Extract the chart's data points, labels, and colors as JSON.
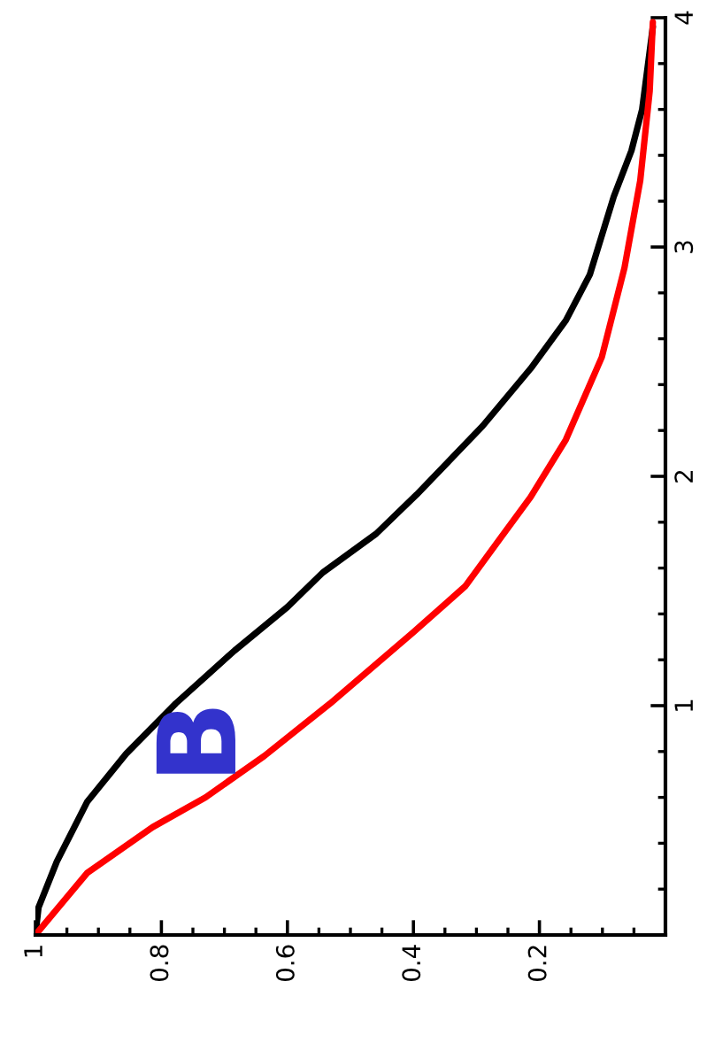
{
  "chart_data": {
    "type": "line",
    "annotations": [
      "B"
    ],
    "xlim": [
      1,
      0
    ],
    "xticks": [
      0.2,
      0.4,
      0.6,
      0.8,
      1
    ],
    "ylim": [
      0,
      4
    ],
    "yticks": [
      1,
      2,
      3,
      4
    ],
    "marker": "none",
    "line_style": "solid",
    "series": [
      {
        "color": "#000000",
        "x": [
          1,
          0.995,
          0.966,
          0.918,
          0.856,
          0.777,
          0.684,
          0.6,
          0.544,
          0.459,
          0.395,
          0.29,
          0.214,
          0.158,
          0.12,
          0.082,
          0.054,
          0.037,
          0.02
        ],
        "values": [
          0,
          0.12,
          0.32,
          0.58,
          0.79,
          1.01,
          1.24,
          1.43,
          1.58,
          1.75,
          1.92,
          2.22,
          2.47,
          2.68,
          2.88,
          3.22,
          3.42,
          3.6,
          3.96
        ]
      },
      {
        "color": "#ff0000",
        "x": [
          1,
          0.918,
          0.814,
          0.73,
          0.637,
          0.532,
          0.4,
          0.318,
          0.262,
          0.214,
          0.158,
          0.101,
          0.065,
          0.04,
          0.025,
          0.02
        ],
        "values": [
          0,
          0.27,
          0.47,
          0.6,
          0.78,
          1.01,
          1.32,
          1.52,
          1.73,
          1.91,
          2.16,
          2.52,
          2.91,
          3.29,
          3.68,
          3.98
        ]
      }
    ]
  }
}
